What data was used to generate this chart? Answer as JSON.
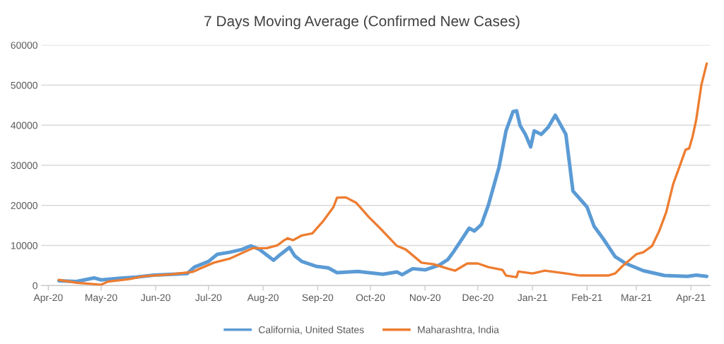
{
  "chart_data": {
    "type": "line",
    "title": "7 Days Moving Average (Confirmed New Cases)",
    "xlim": [
      "2020-03-28",
      "2021-04-12"
    ],
    "xticks": [
      {
        "value": "2020-04-01",
        "label": "Apr-20"
      },
      {
        "value": "2020-05-01",
        "label": "May-20"
      },
      {
        "value": "2020-06-01",
        "label": "Jun-20"
      },
      {
        "value": "2020-07-01",
        "label": "Jul-20"
      },
      {
        "value": "2020-08-01",
        "label": "Aug-20"
      },
      {
        "value": "2020-09-01",
        "label": "Sep-20"
      },
      {
        "value": "2020-10-01",
        "label": "Oct-20"
      },
      {
        "value": "2020-11-01",
        "label": "Nov-20"
      },
      {
        "value": "2020-12-01",
        "label": "Dec-20"
      },
      {
        "value": "2021-01-01",
        "label": "Jan-21"
      },
      {
        "value": "2021-02-01",
        "label": "Feb-21"
      },
      {
        "value": "2021-03-01",
        "label": "Mar-21"
      },
      {
        "value": "2021-04-01",
        "label": "Apr-21"
      }
    ],
    "ylim": [
      0,
      60000
    ],
    "yticks": [
      0,
      10000,
      20000,
      30000,
      40000,
      50000,
      60000
    ],
    "grid": "y",
    "legend": "bottom",
    "marker": "none",
    "line_style": "solid",
    "series": [
      {
        "name": "California, United States",
        "color": "#5b9bd5",
        "x": [
          "2020-04-07",
          "2020-04-17",
          "2020-04-27",
          "2020-05-01",
          "2020-05-11",
          "2020-05-21",
          "2020-05-31",
          "2020-06-11",
          "2020-06-19",
          "2020-06-23",
          "2020-07-01",
          "2020-07-06",
          "2020-07-13",
          "2020-07-20",
          "2020-07-25",
          "2020-07-30",
          "2020-08-07",
          "2020-08-11",
          "2020-08-16",
          "2020-08-19",
          "2020-08-23",
          "2020-08-31",
          "2020-09-07",
          "2020-09-12",
          "2020-09-24",
          "2020-10-08",
          "2020-10-16",
          "2020-10-19",
          "2020-10-25",
          "2020-11-01",
          "2020-11-09",
          "2020-11-14",
          "2020-11-17",
          "2020-11-22",
          "2020-11-26",
          "2020-11-29",
          "2020-12-03",
          "2020-12-07",
          "2020-12-13",
          "2020-12-17",
          "2020-12-21",
          "2020-12-23",
          "2020-12-25",
          "2020-12-28",
          "2020-12-31",
          "2021-01-02",
          "2021-01-06",
          "2021-01-10",
          "2021-01-14",
          "2021-01-20",
          "2021-01-24",
          "2021-02-01",
          "2021-02-05",
          "2021-02-10",
          "2021-02-17",
          "2021-02-23",
          "2021-03-05",
          "2021-03-17",
          "2021-03-30",
          "2021-04-04",
          "2021-04-10"
        ],
        "values": [
          1200,
          1000,
          1900,
          1400,
          1800,
          2100,
          2600,
          2800,
          3000,
          4600,
          6000,
          7800,
          8300,
          9000,
          9900,
          9000,
          6300,
          7800,
          9500,
          7400,
          6000,
          4800,
          4400,
          3200,
          3500,
          2800,
          3400,
          2700,
          4200,
          3900,
          5100,
          6500,
          8300,
          11600,
          14300,
          13600,
          15200,
          20100,
          29500,
          38600,
          43400,
          43600,
          39900,
          37700,
          34600,
          38600,
          37700,
          39500,
          42500,
          37700,
          23600,
          19600,
          14800,
          11800,
          7200,
          5500,
          3700,
          2500,
          2300,
          2600,
          2300
        ]
      },
      {
        "name": "Maharashtra, India",
        "color": "#ed7d31",
        "x": [
          "2020-04-07",
          "2020-04-17",
          "2020-04-25",
          "2020-05-01",
          "2020-05-05",
          "2020-05-17",
          "2020-05-25",
          "2020-06-10",
          "2020-06-22",
          "2020-06-26",
          "2020-07-04",
          "2020-07-13",
          "2020-07-20",
          "2020-07-26",
          "2020-08-03",
          "2020-08-09",
          "2020-08-13",
          "2020-08-15",
          "2020-08-18",
          "2020-08-23",
          "2020-08-29",
          "2020-09-04",
          "2020-09-10",
          "2020-09-12",
          "2020-09-17",
          "2020-09-23",
          "2020-09-30",
          "2020-10-08",
          "2020-10-16",
          "2020-10-21",
          "2020-10-30",
          "2020-11-06",
          "2020-11-14",
          "2020-11-18",
          "2020-11-25",
          "2020-12-01",
          "2020-12-07",
          "2020-12-15",
          "2020-12-17",
          "2020-12-23",
          "2020-12-24",
          "2021-01-01",
          "2021-01-08",
          "2021-01-20",
          "2021-01-28",
          "2021-02-02",
          "2021-02-13",
          "2021-02-17",
          "2021-02-21",
          "2021-03-01",
          "2021-03-05",
          "2021-03-10",
          "2021-03-14",
          "2021-03-18",
          "2021-03-22",
          "2021-03-26",
          "2021-03-29",
          "2021-03-31",
          "2021-04-02",
          "2021-04-04",
          "2021-04-07",
          "2021-04-10"
        ],
        "values": [
          1400,
          700,
          400,
          200,
          1000,
          1600,
          2300,
          2800,
          3400,
          4200,
          5700,
          6700,
          8100,
          9300,
          9300,
          10000,
          11300,
          11800,
          11300,
          12500,
          13000,
          16000,
          19600,
          21900,
          22000,
          20600,
          17100,
          13600,
          9900,
          9000,
          5700,
          5300,
          4200,
          3700,
          5500,
          5500,
          4600,
          3900,
          2500,
          2100,
          3500,
          3000,
          3700,
          3000,
          2500,
          2500,
          2500,
          3000,
          4800,
          7800,
          8300,
          9900,
          13600,
          18300,
          25400,
          30200,
          33900,
          34200,
          37200,
          41300,
          50100,
          55400
        ]
      }
    ]
  }
}
